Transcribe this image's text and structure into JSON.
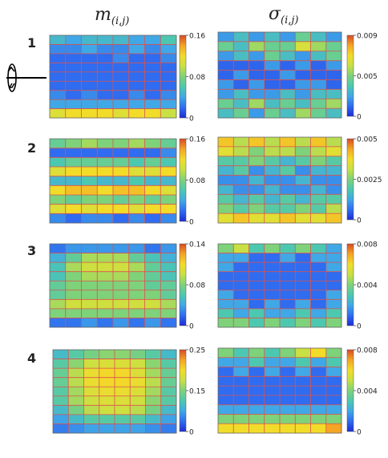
{
  "titles": {
    "left": {
      "main": "m",
      "sub": "(i,j)"
    },
    "right": {
      "main": "σ",
      "sub": "(i,j)"
    }
  },
  "colormap": [
    "#1e2bd6",
    "#2f6cf0",
    "#40a8e6",
    "#4dc8b0",
    "#7ed27a",
    "#c8e044",
    "#f2dc2a",
    "#f4a524",
    "#d84a26"
  ],
  "grid_color": "#d9534f",
  "chart_data": [
    {
      "type": "heatmap",
      "row_label": "1",
      "column": "m(i,j)",
      "cbar_ticks": [
        "0.16",
        "0.08",
        "0"
      ],
      "vmin": 0,
      "vmax": 0.16,
      "values": [
        [
          0.05,
          0.04,
          0.05,
          0.05,
          0.05,
          0.04,
          0.04,
          0.06
        ],
        [
          0.03,
          0.03,
          0.04,
          0.03,
          0.03,
          0.04,
          0.03,
          0.04
        ],
        [
          0.02,
          0.02,
          0.02,
          0.02,
          0.03,
          0.02,
          0.02,
          0.03
        ],
        [
          0.02,
          0.02,
          0.02,
          0.02,
          0.02,
          0.02,
          0.02,
          0.02
        ],
        [
          0.02,
          0.02,
          0.02,
          0.02,
          0.02,
          0.02,
          0.02,
          0.02
        ],
        [
          0.02,
          0.02,
          0.02,
          0.02,
          0.02,
          0.02,
          0.02,
          0.02
        ],
        [
          0.03,
          0.02,
          0.03,
          0.02,
          0.02,
          0.03,
          0.02,
          0.03
        ],
        [
          0.04,
          0.04,
          0.04,
          0.04,
          0.04,
          0.04,
          0.04,
          0.04
        ],
        [
          0.11,
          0.12,
          0.12,
          0.12,
          0.11,
          0.12,
          0.12,
          0.1
        ]
      ]
    },
    {
      "type": "heatmap",
      "row_label": "1",
      "column": "σ(i,j)",
      "cbar_ticks": [
        "0.009",
        "0.005",
        "0"
      ],
      "vmin": 0,
      "vmax": 0.009,
      "values": [
        [
          0.002,
          0.003,
          0.002,
          0.003,
          0.002,
          0.004,
          0.003,
          0.002
        ],
        [
          0.004,
          0.003,
          0.005,
          0.004,
          0.004,
          0.006,
          0.005,
          0.004
        ],
        [
          0.002,
          0.003,
          0.002,
          0.004,
          0.003,
          0.002,
          0.003,
          0.004
        ],
        [
          0.001,
          0.001,
          0.001,
          0.002,
          0.001,
          0.002,
          0.001,
          0.002
        ],
        [
          0.001,
          0.002,
          0.001,
          0.001,
          0.002,
          0.001,
          0.001,
          0.001
        ],
        [
          0.002,
          0.001,
          0.002,
          0.001,
          0.001,
          0.002,
          0.002,
          0.001
        ],
        [
          0.002,
          0.003,
          0.002,
          0.002,
          0.003,
          0.002,
          0.003,
          0.003
        ],
        [
          0.004,
          0.003,
          0.005,
          0.003,
          0.004,
          0.003,
          0.004,
          0.005
        ],
        [
          0.003,
          0.004,
          0.002,
          0.004,
          0.003,
          0.005,
          0.004,
          0.003
        ]
      ]
    },
    {
      "type": "heatmap",
      "row_label": "2",
      "column": "m(i,j)",
      "cbar_ticks": [
        "0.16",
        "0.08",
        "0"
      ],
      "vmin": 0,
      "vmax": 0.16,
      "values": [
        [
          0.07,
          0.08,
          0.09,
          0.08,
          0.08,
          0.09,
          0.08,
          0.07
        ],
        [
          0.02,
          0.02,
          0.02,
          0.02,
          0.02,
          0.02,
          0.02,
          0.03
        ],
        [
          0.06,
          0.07,
          0.07,
          0.07,
          0.07,
          0.06,
          0.07,
          0.06
        ],
        [
          0.11,
          0.12,
          0.12,
          0.12,
          0.12,
          0.11,
          0.11,
          0.12
        ],
        [
          0.05,
          0.05,
          0.06,
          0.05,
          0.05,
          0.06,
          0.05,
          0.05
        ],
        [
          0.12,
          0.13,
          0.13,
          0.12,
          0.13,
          0.13,
          0.12,
          0.11
        ],
        [
          0.08,
          0.07,
          0.08,
          0.08,
          0.07,
          0.08,
          0.07,
          0.08
        ],
        [
          0.11,
          0.12,
          0.11,
          0.12,
          0.12,
          0.11,
          0.12,
          0.12
        ],
        [
          0.03,
          0.02,
          0.03,
          0.03,
          0.02,
          0.03,
          0.02,
          0.03
        ]
      ]
    },
    {
      "type": "heatmap",
      "row_label": "2",
      "column": "σ(i,j)",
      "cbar_ticks": [
        "0.005",
        "0.0025",
        "0"
      ],
      "vmin": 0,
      "vmax": 0.005,
      "values": [
        [
          0.004,
          0.003,
          0.004,
          0.003,
          0.004,
          0.003,
          0.004,
          0.003
        ],
        [
          0.0035,
          0.003,
          0.0025,
          0.003,
          0.003,
          0.0025,
          0.003,
          0.0035
        ],
        [
          0.002,
          0.002,
          0.0025,
          0.002,
          0.0015,
          0.002,
          0.0025,
          0.002
        ],
        [
          0.0015,
          0.002,
          0.001,
          0.0015,
          0.002,
          0.001,
          0.0015,
          0.0015
        ],
        [
          0.001,
          0.001,
          0.0015,
          0.001,
          0.001,
          0.0015,
          0.001,
          0.001
        ],
        [
          0.0015,
          0.001,
          0.001,
          0.0015,
          0.001,
          0.001,
          0.0015,
          0.001
        ],
        [
          0.002,
          0.0015,
          0.002,
          0.0015,
          0.002,
          0.0015,
          0.002,
          0.002
        ],
        [
          0.0025,
          0.002,
          0.0025,
          0.002,
          0.002,
          0.0025,
          0.002,
          0.003
        ],
        [
          0.0035,
          0.004,
          0.0035,
          0.0035,
          0.004,
          0.0035,
          0.0035,
          0.004
        ]
      ]
    },
    {
      "type": "heatmap",
      "row_label": "3",
      "column": "m(i,j)",
      "cbar_ticks": [
        "0.14",
        "0.08",
        "0"
      ],
      "vmin": 0,
      "vmax": 0.14,
      "values": [
        [
          0.02,
          0.03,
          0.03,
          0.03,
          0.03,
          0.03,
          0.02,
          0.03
        ],
        [
          0.04,
          0.06,
          0.08,
          0.08,
          0.08,
          0.06,
          0.05,
          0.04
        ],
        [
          0.05,
          0.08,
          0.09,
          0.09,
          0.09,
          0.08,
          0.06,
          0.05
        ],
        [
          0.05,
          0.07,
          0.08,
          0.08,
          0.08,
          0.07,
          0.06,
          0.05
        ],
        [
          0.06,
          0.07,
          0.07,
          0.07,
          0.07,
          0.07,
          0.06,
          0.06
        ],
        [
          0.06,
          0.07,
          0.07,
          0.07,
          0.07,
          0.07,
          0.07,
          0.06
        ],
        [
          0.08,
          0.09,
          0.09,
          0.09,
          0.09,
          0.09,
          0.09,
          0.08
        ],
        [
          0.07,
          0.07,
          0.07,
          0.07,
          0.07,
          0.07,
          0.07,
          0.07
        ],
        [
          0.02,
          0.02,
          0.03,
          0.02,
          0.03,
          0.02,
          0.03,
          0.02
        ]
      ]
    },
    {
      "type": "heatmap",
      "row_label": "3",
      "column": "σ(i,j)",
      "cbar_ticks": [
        "0.008",
        "0.004",
        "0"
      ],
      "vmin": 0,
      "vmax": 0.008,
      "values": [
        [
          0.004,
          0.005,
          0.003,
          0.004,
          0.003,
          0.004,
          0.003,
          0.002
        ],
        [
          0.002,
          0.002,
          0.001,
          0.001,
          0.002,
          0.001,
          0.002,
          0.002
        ],
        [
          0.002,
          0.001,
          0.001,
          0.001,
          0.001,
          0.001,
          0.001,
          0.002
        ],
        [
          0.001,
          0.001,
          0.001,
          0.001,
          0.001,
          0.001,
          0.001,
          0.001
        ],
        [
          0.001,
          0.001,
          0.001,
          0.001,
          0.001,
          0.001,
          0.001,
          0.001
        ],
        [
          0.002,
          0.001,
          0.001,
          0.001,
          0.001,
          0.001,
          0.001,
          0.002
        ],
        [
          0.002,
          0.002,
          0.001,
          0.002,
          0.001,
          0.002,
          0.001,
          0.002
        ],
        [
          0.003,
          0.002,
          0.003,
          0.002,
          0.002,
          0.003,
          0.002,
          0.003
        ],
        [
          0.004,
          0.004,
          0.003,
          0.004,
          0.003,
          0.004,
          0.003,
          0.004
        ]
      ]
    },
    {
      "type": "heatmap",
      "row_label": "4",
      "column": "m(i,j)",
      "cbar_ticks": [
        "0.25",
        "0.15",
        "0"
      ],
      "vmin": 0,
      "vmax": 0.25,
      "values": [
        [
          0.08,
          0.1,
          0.12,
          0.13,
          0.13,
          0.12,
          0.1,
          0.08
        ],
        [
          0.1,
          0.13,
          0.16,
          0.17,
          0.17,
          0.16,
          0.13,
          0.1
        ],
        [
          0.11,
          0.15,
          0.18,
          0.19,
          0.19,
          0.17,
          0.14,
          0.11
        ],
        [
          0.11,
          0.15,
          0.18,
          0.19,
          0.19,
          0.18,
          0.15,
          0.11
        ],
        [
          0.1,
          0.14,
          0.17,
          0.18,
          0.18,
          0.17,
          0.14,
          0.1
        ],
        [
          0.1,
          0.14,
          0.16,
          0.17,
          0.17,
          0.16,
          0.13,
          0.1
        ],
        [
          0.08,
          0.12,
          0.15,
          0.16,
          0.16,
          0.15,
          0.12,
          0.08
        ],
        [
          0.06,
          0.08,
          0.1,
          0.1,
          0.1,
          0.1,
          0.08,
          0.06
        ],
        [
          0.04,
          0.05,
          0.06,
          0.06,
          0.06,
          0.06,
          0.05,
          0.04
        ]
      ]
    },
    {
      "type": "heatmap",
      "row_label": "4",
      "column": "σ(i,j)",
      "cbar_ticks": [
        "0.008",
        "0.004",
        "0"
      ],
      "vmin": 0,
      "vmax": 0.008,
      "values": [
        [
          0.004,
          0.003,
          0.004,
          0.003,
          0.004,
          0.005,
          0.006,
          0.004
        ],
        [
          0.002,
          0.002,
          0.003,
          0.002,
          0.002,
          0.003,
          0.002,
          0.003
        ],
        [
          0.001,
          0.002,
          0.001,
          0.002,
          0.001,
          0.002,
          0.001,
          0.002
        ],
        [
          0.001,
          0.001,
          0.001,
          0.001,
          0.001,
          0.001,
          0.001,
          0.001
        ],
        [
          0.001,
          0.001,
          0.001,
          0.001,
          0.001,
          0.001,
          0.001,
          0.001
        ],
        [
          0.001,
          0.001,
          0.001,
          0.001,
          0.001,
          0.001,
          0.001,
          0.001
        ],
        [
          0.002,
          0.002,
          0.002,
          0.002,
          0.002,
          0.002,
          0.002,
          0.002
        ],
        [
          0.004,
          0.004,
          0.004,
          0.004,
          0.004,
          0.004,
          0.004,
          0.004
        ],
        [
          0.006,
          0.006,
          0.006,
          0.006,
          0.006,
          0.006,
          0.006,
          0.007
        ]
      ]
    }
  ]
}
